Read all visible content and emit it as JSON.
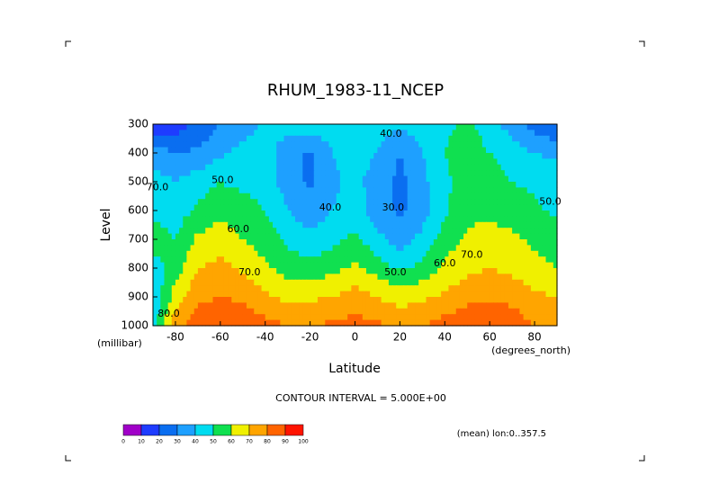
{
  "chart_data": {
    "type": "contour",
    "title": "RHUM_1983-11_NCEP",
    "x_label": "Latitude",
    "y_label": "Level",
    "x_units": "(degrees_north)",
    "y_units": "(millibar)",
    "contour_note": "CONTOUR INTERVAL = 5.000E+00",
    "dimension_note": "(mean) lon:0..357.5",
    "x": [
      -90,
      -80,
      -70,
      -60,
      -50,
      -40,
      -30,
      -20,
      -10,
      0,
      10,
      20,
      30,
      40,
      50,
      60,
      70,
      80,
      90
    ],
    "y": [
      300,
      400,
      500,
      600,
      700,
      800,
      900,
      1000
    ],
    "z": [
      [
        8,
        15,
        22,
        30,
        35,
        42,
        45,
        45,
        45,
        45,
        45,
        42,
        45,
        48,
        52,
        45,
        35,
        25,
        20
      ],
      [
        35,
        30,
        32,
        38,
        43,
        45,
        33,
        28,
        40,
        45,
        40,
        30,
        40,
        50,
        55,
        50,
        45,
        40,
        38
      ],
      [
        45,
        40,
        45,
        50,
        47,
        45,
        35,
        28,
        38,
        43,
        35,
        27,
        37,
        48,
        55,
        55,
        50,
        48,
        45
      ],
      [
        48,
        45,
        52,
        57,
        55,
        50,
        40,
        33,
        40,
        45,
        35,
        28,
        35,
        48,
        57,
        57,
        55,
        52,
        48
      ],
      [
        55,
        50,
        62,
        65,
        60,
        55,
        48,
        43,
        47,
        52,
        43,
        35,
        43,
        55,
        62,
        65,
        62,
        58,
        55
      ],
      [
        45,
        55,
        70,
        73,
        68,
        62,
        55,
        53,
        57,
        62,
        55,
        48,
        53,
        62,
        67,
        70,
        67,
        63,
        60
      ],
      [
        40,
        65,
        78,
        80,
        78,
        72,
        67,
        68,
        70,
        75,
        70,
        65,
        68,
        72,
        77,
        78,
        77,
        72,
        70
      ],
      [
        45,
        78,
        85,
        88,
        87,
        83,
        80,
        80,
        82,
        83,
        82,
        78,
        80,
        84,
        88,
        88,
        86,
        80,
        80
      ]
    ],
    "levels": [
      0,
      10,
      20,
      30,
      40,
      50,
      60,
      70,
      80,
      90,
      100
    ],
    "colors": [
      "#a000c8",
      "#1e3cff",
      "#0a6ef0",
      "#1ea0ff",
      "#00dcf0",
      "#10e050",
      "#f0f000",
      "#ffa500",
      "#ff6400",
      "#ff1400"
    ],
    "contour_labels": [
      {
        "label": "50.0",
        "lat": -59,
        "level": 495
      },
      {
        "label": "60.0",
        "lat": -52,
        "level": 665
      },
      {
        "label": "70.0",
        "lat": -47,
        "level": 815
      },
      {
        "label": "80.0",
        "lat": -83,
        "level": 960
      },
      {
        "label": "70.0",
        "lat": -88,
        "level": 520
      },
      {
        "label": "40.0",
        "lat": -11,
        "level": 590
      },
      {
        "label": "40.0",
        "lat": 16,
        "level": 335
      },
      {
        "label": "30.0",
        "lat": 17,
        "level": 590
      },
      {
        "label": "50.0",
        "lat": 18,
        "level": 815
      },
      {
        "label": "60.0",
        "lat": 40,
        "level": 785
      },
      {
        "label": "70.0",
        "lat": 52,
        "level": 755
      },
      {
        "label": "50.0",
        "lat": 87,
        "level": 570
      }
    ],
    "xlim": [
      -90,
      90
    ],
    "ylim": [
      1000,
      300
    ],
    "xticks": [
      -80,
      -60,
      -40,
      -20,
      0,
      20,
      40,
      60,
      80
    ],
    "yticks": [
      300,
      400,
      500,
      600,
      700,
      800,
      900,
      1000
    ]
  }
}
